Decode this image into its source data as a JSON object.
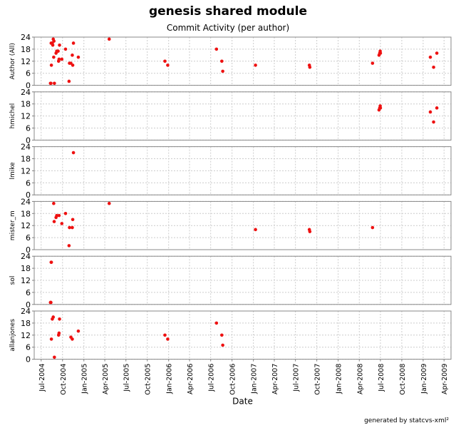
{
  "header": {
    "title": "genesis shared module",
    "subtitle": "Commit Activity (per author)"
  },
  "footer": {
    "credit": "generated by statcvs-xml²"
  },
  "colors": {
    "points": "#ee1111",
    "grid": "#cccccc",
    "axis": "#808080",
    "frame": "#888888"
  },
  "chart_data": {
    "type": "scatter",
    "title": "genesis shared module",
    "subtitle": "Commit Activity (per author)",
    "xlabel": "Date",
    "xlim": [
      "2004-06-01",
      "2009-05-01"
    ],
    "x_ticks": [
      "Jul-2004",
      "Oct-2004",
      "Jan-2005",
      "Apr-2005",
      "Jul-2005",
      "Oct-2005",
      "Jan-2006",
      "Apr-2006",
      "Jul-2006",
      "Oct-2006",
      "Jan-2007",
      "Apr-2007",
      "Jul-2007",
      "Oct-2007",
      "Jan-2008",
      "Apr-2008",
      "Jul-2008",
      "Oct-2008",
      "Jan-2009",
      "Apr-2009"
    ],
    "ylim": [
      0,
      24
    ],
    "y_ticks": [
      0,
      6,
      12,
      18,
      24
    ],
    "grid": true,
    "series": [
      {
        "name": "Author (All)",
        "points": [
          [
            "2004-08-10",
            1
          ],
          [
            "2004-08-12",
            1
          ],
          [
            "2004-08-13",
            21
          ],
          [
            "2004-08-14",
            10
          ],
          [
            "2004-08-18",
            21
          ],
          [
            "2004-08-20",
            20
          ],
          [
            "2004-08-22",
            23
          ],
          [
            "2004-08-24",
            14
          ],
          [
            "2004-08-25",
            22
          ],
          [
            "2004-08-27",
            1
          ],
          [
            "2004-09-03",
            16
          ],
          [
            "2004-09-06",
            17
          ],
          [
            "2004-09-12",
            17
          ],
          [
            "2004-09-14",
            12
          ],
          [
            "2004-09-16",
            13
          ],
          [
            "2004-09-18",
            20
          ],
          [
            "2004-09-28",
            13
          ],
          [
            "2004-10-14",
            18
          ],
          [
            "2004-10-29",
            2
          ],
          [
            "2004-10-31",
            11
          ],
          [
            "2004-11-06",
            11
          ],
          [
            "2004-11-12",
            15
          ],
          [
            "2004-11-14",
            10
          ],
          [
            "2004-11-17",
            21
          ],
          [
            "2004-12-08",
            14
          ],
          [
            "2005-04-20",
            23
          ],
          [
            "2005-12-16",
            12
          ],
          [
            "2005-12-28",
            10
          ],
          [
            "2006-07-26",
            18
          ],
          [
            "2006-08-18",
            12
          ],
          [
            "2006-08-22",
            7
          ],
          [
            "2007-01-10",
            10
          ],
          [
            "2007-08-30",
            10
          ],
          [
            "2007-09-01",
            9
          ],
          [
            "2008-05-28",
            11
          ],
          [
            "2008-06-25",
            15
          ],
          [
            "2008-06-28",
            16
          ],
          [
            "2008-06-30",
            17
          ],
          [
            "2008-07-01",
            16
          ],
          [
            "2009-02-01",
            14
          ],
          [
            "2009-02-15",
            9
          ],
          [
            "2009-03-01",
            16
          ]
        ]
      },
      {
        "name": "hmichel",
        "points": [
          [
            "2008-06-25",
            15
          ],
          [
            "2008-06-28",
            16
          ],
          [
            "2008-06-30",
            17
          ],
          [
            "2008-07-01",
            16
          ],
          [
            "2009-02-01",
            14
          ],
          [
            "2009-02-15",
            9
          ],
          [
            "2009-03-01",
            16
          ]
        ]
      },
      {
        "name": "lmike",
        "points": [
          [
            "2004-11-17",
            21
          ]
        ]
      },
      {
        "name": "mister_m",
        "points": [
          [
            "2004-08-24",
            23
          ],
          [
            "2004-08-26",
            14
          ],
          [
            "2004-09-03",
            16
          ],
          [
            "2004-09-06",
            17
          ],
          [
            "2004-09-16",
            17
          ],
          [
            "2004-09-28",
            13
          ],
          [
            "2004-10-14",
            18
          ],
          [
            "2004-10-29",
            2
          ],
          [
            "2004-10-31",
            11
          ],
          [
            "2004-11-12",
            11
          ],
          [
            "2004-11-14",
            15
          ],
          [
            "2005-04-20",
            23
          ],
          [
            "2007-01-10",
            10
          ],
          [
            "2007-08-30",
            10
          ],
          [
            "2007-09-01",
            9
          ],
          [
            "2008-05-28",
            11
          ]
        ]
      },
      {
        "name": "sol",
        "points": [
          [
            "2004-08-10",
            1
          ],
          [
            "2004-08-12",
            1
          ],
          [
            "2004-08-13",
            21
          ],
          [
            "2004-08-14",
            21
          ]
        ]
      },
      {
        "name": "allanjones",
        "points": [
          [
            "2004-08-14",
            10
          ],
          [
            "2004-08-18",
            20
          ],
          [
            "2004-08-22",
            21
          ],
          [
            "2004-08-27",
            1
          ],
          [
            "2004-09-14",
            12
          ],
          [
            "2004-09-16",
            13
          ],
          [
            "2004-09-18",
            20
          ],
          [
            "2004-11-06",
            11
          ],
          [
            "2004-11-12",
            10
          ],
          [
            "2004-12-08",
            14
          ],
          [
            "2005-12-16",
            12
          ],
          [
            "2005-12-28",
            10
          ],
          [
            "2006-07-26",
            18
          ],
          [
            "2006-08-18",
            12
          ],
          [
            "2006-08-22",
            7
          ]
        ]
      }
    ]
  }
}
